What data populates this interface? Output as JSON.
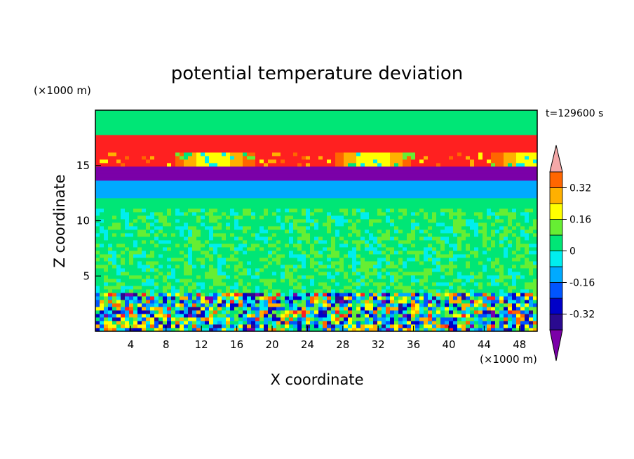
{
  "chart_data": {
    "type": "heatmap",
    "title": "potential temperature deviation",
    "xlabel": "X coordinate",
    "ylabel": "Z coordinate",
    "x_unit": "(×1000 m)",
    "y_unit": "(×1000 m)",
    "time_label": "t=129600 s",
    "xlim": [
      0,
      50
    ],
    "ylim": [
      0,
      20
    ],
    "x_ticks": [
      4,
      8,
      12,
      16,
      20,
      24,
      28,
      32,
      36,
      40,
      44,
      48
    ],
    "y_ticks": [
      5,
      10,
      15
    ],
    "colorbar": {
      "levels": [
        -0.4,
        -0.32,
        -0.24,
        -0.16,
        -0.08,
        0,
        0.08,
        0.16,
        0.24,
        0.32,
        0.4
      ],
      "colors": [
        "#7b00a8",
        "#2a0a8f",
        "#0000c8",
        "#0055ff",
        "#00aaff",
        "#00eeee",
        "#00e676",
        "#66ee33",
        "#ffff00",
        "#ffb000",
        "#ff6600",
        "#ff2020",
        "#f4a8a8"
      ],
      "tick_labels": [
        "0.32",
        "0.16",
        "0",
        "-0.16",
        "-0.32"
      ],
      "tick_values": [
        0.32,
        0.16,
        0,
        -0.16,
        -0.32
      ],
      "extend": "both"
    },
    "bands": [
      {
        "z": [
          0,
          3.5
        ],
        "value": 0.0,
        "pattern": "noisy-strong"
      },
      {
        "z": [
          3.5,
          11
        ],
        "value": 0.05,
        "pattern": "noisy-weak"
      },
      {
        "z": [
          11,
          12.2
        ],
        "value": 0.0,
        "pattern": "flat"
      },
      {
        "z": [
          12.2,
          13.5
        ],
        "value": -0.12,
        "pattern": "flat"
      },
      {
        "z": [
          13.5,
          14.8
        ],
        "value": -0.45,
        "pattern": "flat"
      },
      {
        "z": [
          14.8,
          16.2
        ],
        "value": 0.4,
        "pattern": "wavy"
      },
      {
        "z": [
          16.2,
          17.8
        ],
        "value": 0.45,
        "pattern": "flat"
      },
      {
        "z": [
          17.8,
          20
        ],
        "value": 0.02,
        "pattern": "flat"
      }
    ]
  }
}
